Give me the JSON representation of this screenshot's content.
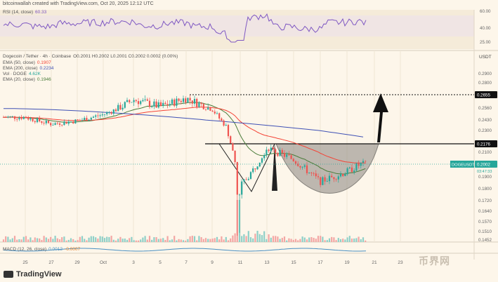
{
  "header": "bitcoinwallah created with TradingView.com, Oct 20, 2025 12:12 UTC",
  "branding": {
    "name": "TradingView",
    "watermark": "币界网"
  },
  "colors": {
    "bg": "#fdf6ea",
    "up": "#26a69a",
    "down": "#ef5350",
    "rsi": "#7e57c2",
    "ema50": "#f44336",
    "ema200": "#3f51b5",
    "ema20": "#4a7c3a",
    "pattern_fill": "#8a8580",
    "target": "#111111"
  },
  "legend": {
    "rsi": {
      "label": "RSI (14, close)",
      "value": "60.33"
    },
    "symbol": {
      "label": "Dogecoin / Tether · 4h · Coinbase",
      "ohlc": "O0.2001 H0.2002 L0.2001 C0.2002 0.0002 (0.00%)"
    },
    "ema50": {
      "label": "EMA (50, close)",
      "value": "0.1907"
    },
    "ema200": {
      "label": "EMA (200, close)",
      "value": "0.2234"
    },
    "vol": {
      "label": "Vol · DOGE",
      "value": "4.62K"
    },
    "ema20": {
      "label": "EMA (20, close)",
      "value": "0.1946"
    },
    "macd": {
      "label": "MACD (12, 26, close)",
      "v1": "0.0012",
      "v2": "-0.0007"
    }
  },
  "rsi_axis": [
    "60.00",
    "40.00",
    "25.00"
  ],
  "price_axis": [
    "0.2900",
    "0.2800",
    "0.2655",
    "0.2560",
    "0.2430",
    "0.2300",
    "0.2176",
    "0.2100",
    "0.2002",
    "0.1900",
    "0.1800",
    "0.1720",
    "0.1640",
    "0.1570",
    "0.1510",
    "0.1452"
  ],
  "currency": "USDT",
  "badges": {
    "target": "0.2655",
    "neckline": "0.2176",
    "price": "0.2002",
    "symbol": "DOGEUSDT",
    "countdown": "03:47:33"
  },
  "x_axis": [
    "25",
    "27",
    "29",
    "Oct",
    "3",
    "5",
    "7",
    "9",
    "11",
    "13",
    "15",
    "17",
    "19",
    "21",
    "23"
  ],
  "chart_data": {
    "type": "candlestick",
    "title": "",
    "symbol": "DOGEUSDT",
    "timeframe": "4h",
    "x_ticks": [
      "25",
      "27",
      "29",
      "Oct",
      "3",
      "5",
      "7",
      "9",
      "11",
      "13",
      "15",
      "17",
      "19",
      "21",
      "23"
    ],
    "price_ticks": [
      0.29,
      0.28,
      0.2655,
      0.256,
      0.243,
      0.23,
      0.2176,
      0.21,
      0.2002,
      0.19,
      0.18,
      0.172,
      0.164,
      0.157,
      0.151,
      0.1452
    ],
    "price_path": [
      {
        "x": "25",
        "close": 0.246
      },
      {
        "x": "27",
        "close": 0.238
      },
      {
        "x": "29",
        "close": 0.242
      },
      {
        "x": "Oct",
        "close": 0.249
      },
      {
        "x": "3",
        "close": 0.262
      },
      {
        "x": "5",
        "close": 0.257
      },
      {
        "x": "7",
        "close": 0.263
      },
      {
        "x": "9",
        "close": 0.255
      },
      {
        "x": "10",
        "close": 0.235
      },
      {
        "x": "11",
        "close": 0.182
      },
      {
        "x": "12",
        "close": 0.196
      },
      {
        "x": "13",
        "close": 0.214
      },
      {
        "x": "15",
        "close": 0.204
      },
      {
        "x": "17",
        "close": 0.186
      },
      {
        "x": "19",
        "close": 0.194
      },
      {
        "x": "20",
        "close": 0.2002
      }
    ],
    "rsi_range": [
      25,
      60
    ],
    "rsi_last": 60.33,
    "ema": {
      "ema20": 0.1946,
      "ema50": 0.1907,
      "ema200": 0.2234
    },
    "annotations": {
      "neckline": 0.2176,
      "target": 0.2655,
      "last_price": 0.2002,
      "pattern": "cup-and-handle"
    }
  }
}
